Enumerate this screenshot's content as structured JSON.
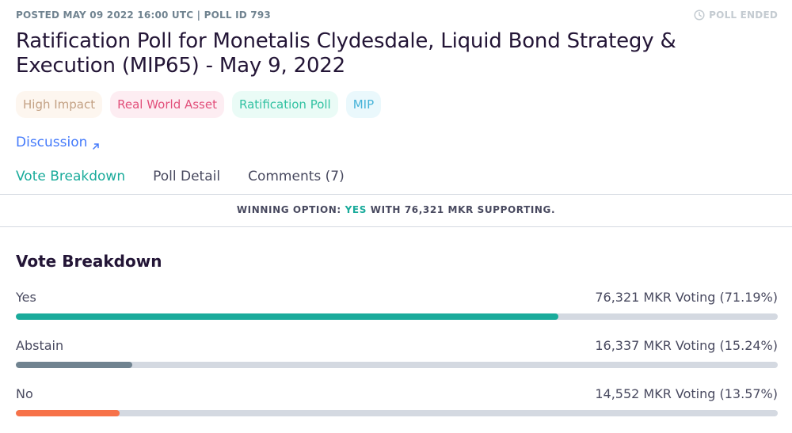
{
  "header": {
    "posted": "POSTED MAY 09 2022 16:00 UTC | POLL ID 793",
    "status": "POLL ENDED",
    "status_icon": "clock-icon"
  },
  "title": "Ratification Poll for Monetalis Clydesdale, Liquid Bond Strategy & Execution (MIP65) - May 9, 2022",
  "tags": [
    {
      "label": "High Impact",
      "bg": "#fdf6ef",
      "color": "#c3a184"
    },
    {
      "label": "Real World Asset",
      "bg": "#fdedf2",
      "color": "#e2507b"
    },
    {
      "label": "Ratification Poll",
      "bg": "#eafbf6",
      "color": "#32c2a2"
    },
    {
      "label": "MIP",
      "bg": "#eaf8fc",
      "color": "#47b3d8"
    }
  ],
  "discussion": {
    "label": "Discussion",
    "icon": "arrow-up-right-icon"
  },
  "tabs": [
    {
      "label": "Vote Breakdown",
      "active": true
    },
    {
      "label": "Poll Detail",
      "active": false
    },
    {
      "label": "Comments (7)",
      "active": false
    }
  ],
  "winning": {
    "prefix": "WINNING OPTION:",
    "option": "YES",
    "suffix": "WITH 76,321 MKR SUPPORTING."
  },
  "breakdown": {
    "title": "Vote Breakdown",
    "options": [
      {
        "label": "Yes",
        "value": "76,321 MKR Voting (71.19%)",
        "percent": 71.19,
        "color": "#1aab9b"
      },
      {
        "label": "Abstain",
        "value": "16,337 MKR Voting (15.24%)",
        "percent": 15.24,
        "color": "#708390"
      },
      {
        "label": "No",
        "value": "14,552 MKR Voting (13.57%)",
        "percent": 13.57,
        "color": "#f77249"
      }
    ]
  }
}
